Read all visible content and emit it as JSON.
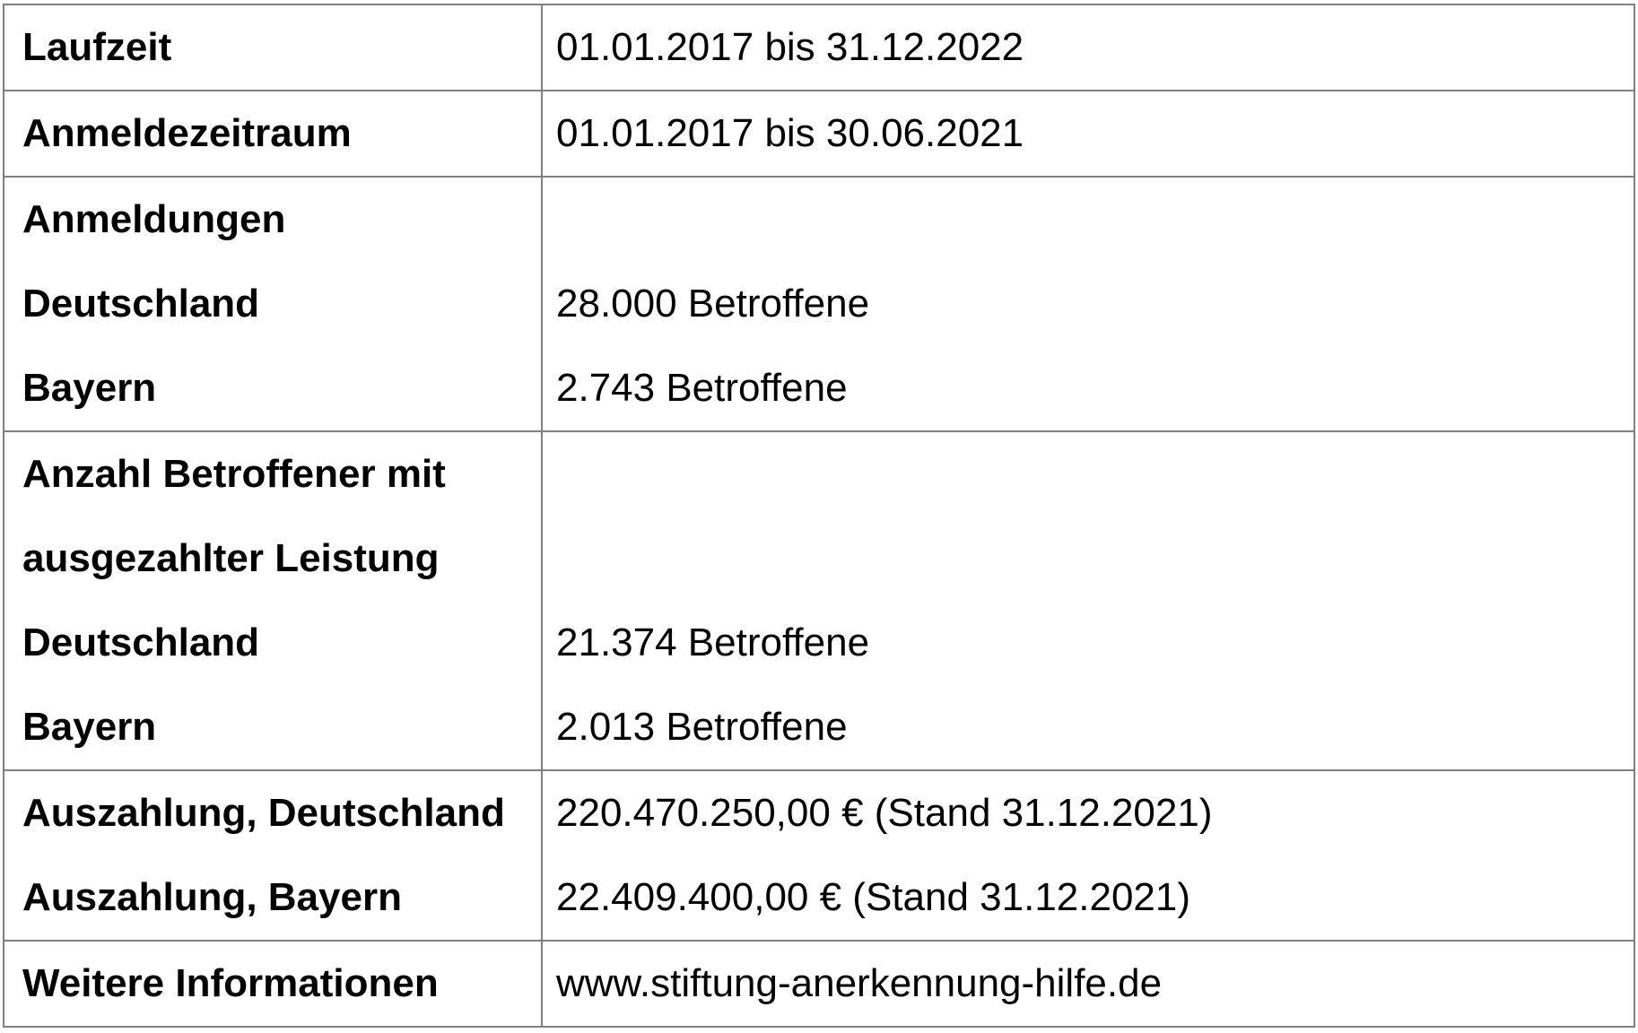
{
  "page": {
    "background_color": "#ffffff",
    "text_color": "#000000",
    "border_color": "#808080"
  },
  "table": {
    "rows": [
      {
        "name": "laufzeit",
        "label_lines": [
          "Laufzeit"
        ],
        "value_lines": [
          "01.01.2017 bis 31.12.2022"
        ]
      },
      {
        "name": "anmeldezeitraum",
        "label_lines": [
          "Anmeldezeitraum"
        ],
        "value_lines": [
          "01.01.2017 bis 30.06.2021"
        ]
      },
      {
        "name": "anmeldungen",
        "label_lines": [
          "Anmeldungen",
          "Deutschland",
          "Bayern"
        ],
        "value_lines": [
          "",
          "28.000 Betroffene",
          "2.743 Betroffene"
        ]
      },
      {
        "name": "anzahl-betroffener-mit-ausgezahlter-leistung",
        "label_lines": [
          "Anzahl Betroffener mit",
          "ausgezahlter Leistung",
          "Deutschland",
          "Bayern"
        ],
        "value_lines": [
          "",
          "",
          "21.374 Betroffene",
          "2.013 Betroffene"
        ]
      },
      {
        "name": "auszahlung",
        "label_lines": [
          "Auszahlung, Deutschland",
          "Auszahlung, Bayern"
        ],
        "value_lines": [
          "220.470.250,00 € (Stand 31.12.2021)",
          "22.409.400,00 € (Stand 31.12.2021)"
        ]
      },
      {
        "name": "weitere-informationen",
        "label_lines": [
          "Weitere Informationen"
        ],
        "value_lines": [
          "www.stiftung-anerkennung-hilfe.de"
        ]
      }
    ]
  }
}
